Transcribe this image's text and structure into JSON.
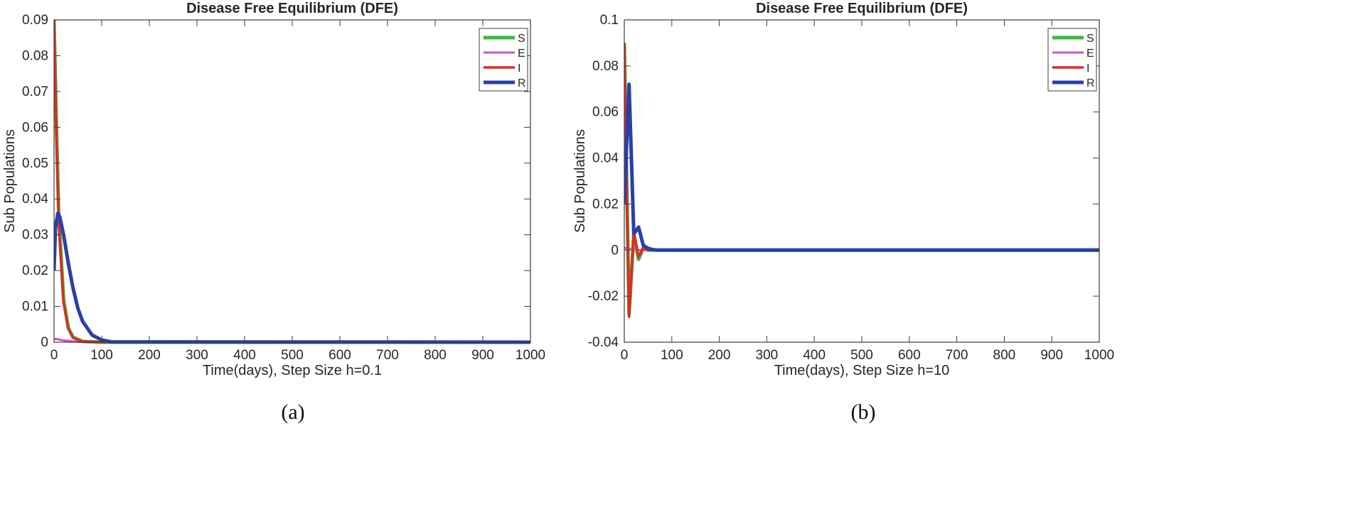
{
  "colors": {
    "S": "#3dbb3d",
    "E": "#d252c4",
    "I": "#dd2c22",
    "R": "#2b3fa8",
    "axis": "#3c3c3c"
  },
  "chart_data": [
    {
      "id": "a",
      "type": "line",
      "title": "Disease Free Equilibrium (DFE)",
      "xlabel": "Time(days), Step Size h=0.1",
      "ylabel": "Sub Populations",
      "caption": "(a)",
      "xlim": [
        0,
        1000
      ],
      "ylim": [
        0,
        0.09
      ],
      "xticks": [
        0,
        100,
        200,
        300,
        400,
        500,
        600,
        700,
        800,
        900,
        1000
      ],
      "yticks": [
        0,
        0.01,
        0.02,
        0.03,
        0.04,
        0.05,
        0.06,
        0.07,
        0.08,
        0.09
      ],
      "ytick_labels": [
        "0",
        "0.01",
        "0.02",
        "0.03",
        "0.04",
        "0.05",
        "0.06",
        "0.07",
        "0.08",
        "0.09"
      ],
      "legend": [
        "S",
        "E",
        "I",
        "R"
      ],
      "legend_position": "top-right",
      "series": [
        {
          "name": "S",
          "x": [
            0,
            5,
            10,
            20,
            30,
            40,
            60,
            100,
            1000
          ],
          "values": [
            0.09,
            0.06,
            0.035,
            0.012,
            0.004,
            0.0014,
            0.0002,
            0,
            0
          ]
        },
        {
          "name": "E",
          "x": [
            0,
            20,
            50,
            80,
            1000
          ],
          "values": [
            0.001,
            0.0005,
            0.0001,
            0,
            0
          ]
        },
        {
          "name": "I",
          "x": [
            0,
            5,
            10,
            20,
            30,
            40,
            60,
            100,
            1000
          ],
          "values": [
            0.09,
            0.058,
            0.033,
            0.011,
            0.0037,
            0.0012,
            0.0002,
            0,
            0
          ]
        },
        {
          "name": "R",
          "x": [
            0,
            3,
            8,
            12,
            20,
            30,
            40,
            50,
            60,
            80,
            100,
            120,
            1000
          ],
          "values": [
            0.02,
            0.032,
            0.036,
            0.035,
            0.03,
            0.022,
            0.015,
            0.0095,
            0.0058,
            0.002,
            0.0006,
            0.0001,
            0
          ]
        }
      ]
    },
    {
      "id": "b",
      "type": "line",
      "title": "Disease Free Equilibrium (DFE)",
      "xlabel": "Time(days), Step Size h=10",
      "ylabel": "Sub Populations",
      "caption": "(b)",
      "xlim": [
        0,
        1000
      ],
      "ylim": [
        -0.04,
        0.1
      ],
      "xticks": [
        0,
        100,
        200,
        300,
        400,
        500,
        600,
        700,
        800,
        900,
        1000
      ],
      "yticks": [
        -0.04,
        -0.02,
        0,
        0.02,
        0.04,
        0.06,
        0.08,
        0.1
      ],
      "ytick_labels": [
        "-0.04",
        "-0.02",
        "0",
        "0.02",
        "0.04",
        "0.06",
        "0.08",
        "0.1"
      ],
      "legend": [
        "S",
        "E",
        "I",
        "R"
      ],
      "legend_position": "top-right",
      "series": [
        {
          "name": "S",
          "x": [
            0,
            10,
            20,
            30,
            40,
            50,
            60,
            1000
          ],
          "values": [
            0.09,
            -0.028,
            0.007,
            -0.004,
            0.001,
            0,
            0,
            0
          ]
        },
        {
          "name": "E",
          "x": [
            0,
            10,
            20,
            30,
            1000
          ],
          "values": [
            0.001,
            0.0005,
            0.0002,
            0,
            0
          ]
        },
        {
          "name": "I",
          "x": [
            0,
            10,
            20,
            30,
            40,
            50,
            60,
            1000
          ],
          "values": [
            0.09,
            -0.029,
            0.008,
            -0.003,
            0.001,
            0,
            0,
            0
          ]
        },
        {
          "name": "R",
          "x": [
            0,
            10,
            20,
            30,
            40,
            50,
            60,
            70,
            80,
            1000
          ],
          "values": [
            0.02,
            0.072,
            0.007,
            0.01,
            0.002,
            0.0008,
            0.0002,
            0,
            0,
            0
          ]
        }
      ]
    }
  ]
}
